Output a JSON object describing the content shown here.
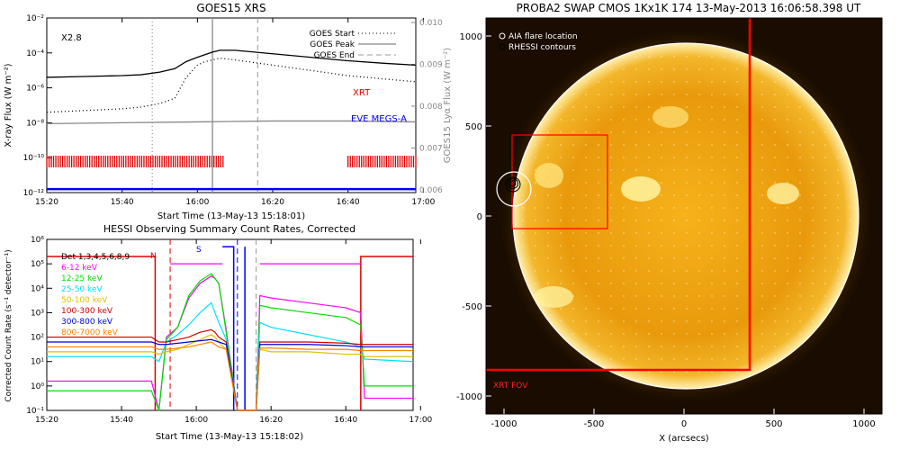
{
  "chart_data": [
    {
      "type": "line",
      "title": "GOES15 XRS",
      "xlabel": "Start Time (13-May-13 15:18:01)",
      "ylabel": "X-ray Flux (W m⁻²)",
      "ylabel_right": "GOES15 Lyα Flux (W m⁻²)",
      "class_label": "X2.8",
      "x_ticks": [
        "15:20",
        "15:40",
        "16:00",
        "16:20",
        "16:40",
        "17:00"
      ],
      "y_ticks": [
        "10⁻¹²",
        "10⁻¹⁰",
        "10⁻⁸",
        "10⁻⁶",
        "10⁻⁴",
        "10⁻²"
      ],
      "y_ticks_right": [
        "0.006",
        "0.007",
        "0.008",
        "0.009",
        "0.010"
      ],
      "xlim_min": [
        20,
        118
      ],
      "ylim_log10": [
        -12,
        -2
      ],
      "legend": [
        {
          "name": "GOES Start",
          "style": "dotted"
        },
        {
          "name": "GOES Peak",
          "style": "solid"
        },
        {
          "name": "GOES End",
          "style": "dashed"
        }
      ],
      "markers_min": {
        "start": 48,
        "peak": 64,
        "end": 76
      },
      "labels": {
        "xrt": "XRT",
        "eve": "EVE MEGS-A"
      },
      "series": [
        {
          "name": "long",
          "color": "#000000",
          "style": "solid",
          "x": [
            20,
            30,
            40,
            45,
            50,
            54,
            57,
            60,
            62,
            64,
            66,
            70,
            80,
            90,
            100,
            110,
            118
          ],
          "y": [
            -5.4,
            -5.35,
            -5.3,
            -5.25,
            -5.1,
            -4.9,
            -4.5,
            -4.25,
            -4.1,
            -3.95,
            -3.85,
            -3.85,
            -4.05,
            -4.25,
            -4.45,
            -4.6,
            -4.7
          ]
        },
        {
          "name": "short",
          "color": "#000000",
          "style": "dotted",
          "x": [
            20,
            30,
            40,
            45,
            50,
            54,
            57,
            60,
            62,
            64,
            66,
            70,
            80,
            90,
            100,
            110,
            118
          ],
          "y": [
            -7.4,
            -7.3,
            -7.2,
            -7.1,
            -6.9,
            -6.6,
            -5.4,
            -4.7,
            -4.5,
            -4.4,
            -4.3,
            -4.4,
            -4.7,
            -5.0,
            -5.3,
            -5.5,
            -5.65
          ]
        },
        {
          "name": "lya",
          "color": "#888888",
          "style": "solid",
          "x": [
            20,
            40,
            60,
            80,
            100,
            118
          ],
          "y": [
            -8.05,
            -8.0,
            -7.95,
            -7.9,
            -7.9,
            -7.95
          ]
        },
        {
          "name": "eve",
          "color": "#0000ff",
          "style": "solid",
          "x": [
            20,
            118
          ],
          "y": [
            -11.8,
            -11.8
          ]
        }
      ],
      "xrt_intervals_min": [
        [
          20,
          67
        ],
        [
          100,
          118
        ]
      ]
    },
    {
      "type": "line",
      "title": "HESSI Observing Summary Count Rates, Corrected",
      "xlabel": "Start Time (13-May-13 15:18:02)",
      "ylabel": "Corrected Count Rate (s⁻¹ detector⁻¹)",
      "x_ticks": [
        "15:20",
        "15:40",
        "16:00",
        "16:20",
        "16:40",
        "17:00"
      ],
      "y_ticks": [
        "10⁻¹",
        "10⁰",
        "10¹",
        "10²",
        "10³",
        "10⁴",
        "10⁵",
        "10⁶"
      ],
      "xlim_min": [
        20,
        118
      ],
      "ylim_log10": [
        -1,
        6
      ],
      "legend_title": "Det 1,3,4,5,6,8,9",
      "flags": {
        "n": "N",
        "s": "S"
      },
      "series": [
        {
          "name": "6-12 keV",
          "color": "#ff00ff",
          "x": [
            20,
            48,
            50,
            52,
            55,
            58,
            61,
            64,
            65,
            66,
            68,
            71,
            76,
            77,
            80,
            90,
            100,
            104,
            105,
            118
          ],
          "y": [
            0.2,
            0.2,
            -1,
            2,
            2.4,
            3.6,
            4.2,
            4.5,
            4.4,
            4.2,
            2.3,
            -1,
            -1,
            3.7,
            3.6,
            3.4,
            3.2,
            3.0,
            -0.5,
            -0.5
          ]
        },
        {
          "name": "12-25 keV",
          "color": "#00dd00",
          "x": [
            20,
            48,
            50,
            52,
            55,
            58,
            61,
            64,
            65,
            66,
            68,
            71,
            76,
            77,
            80,
            90,
            100,
            104,
            105,
            118
          ],
          "y": [
            -0.2,
            -0.2,
            -1,
            1.9,
            2.4,
            3.7,
            4.3,
            4.6,
            4.4,
            4.2,
            2.2,
            -1,
            -1,
            3.3,
            3.2,
            3.0,
            2.8,
            2.5,
            0.0,
            0.0
          ]
        },
        {
          "name": "25-50 keV",
          "color": "#00e0ff",
          "x": [
            20,
            48,
            50,
            52,
            55,
            58,
            61,
            64,
            65,
            66,
            68,
            71,
            76,
            77,
            80,
            90,
            100,
            104,
            105,
            118
          ],
          "y": [
            1.2,
            1.2,
            1.0,
            1.8,
            2.1,
            2.5,
            3.0,
            3.4,
            3.0,
            2.6,
            1.9,
            -1,
            -1,
            2.6,
            2.4,
            2.1,
            1.8,
            1.6,
            1.1,
            1.0
          ]
        },
        {
          "name": "50-100 keV",
          "color": "#dcc000",
          "x": [
            20,
            48,
            50,
            52,
            55,
            58,
            61,
            64,
            65,
            66,
            68,
            71,
            76,
            77,
            80,
            90,
            100,
            104,
            105,
            118
          ],
          "y": [
            1.4,
            1.4,
            1.3,
            1.4,
            1.5,
            1.7,
            1.9,
            2.1,
            2.0,
            1.8,
            1.5,
            -1,
            -1,
            1.5,
            1.4,
            1.4,
            1.3,
            1.3,
            1.2,
            1.2
          ]
        },
        {
          "name": "100-300 keV",
          "color": "#cc0000",
          "x": [
            20,
            48,
            50,
            52,
            55,
            58,
            61,
            64,
            65,
            66,
            68,
            71,
            76,
            77,
            80,
            90,
            100,
            104,
            105,
            118
          ],
          "y": [
            2.0,
            2.0,
            1.8,
            1.8,
            1.9,
            2.0,
            2.2,
            2.3,
            2.2,
            2.0,
            1.8,
            -1,
            -1,
            1.8,
            1.8,
            1.8,
            1.75,
            1.7,
            1.7,
            1.7
          ]
        },
        {
          "name": "300-800 keV",
          "color": "#0000dd",
          "x": [
            20,
            48,
            50,
            52,
            55,
            58,
            61,
            64,
            65,
            66,
            68,
            71,
            76,
            77,
            80,
            90,
            100,
            104,
            105,
            118
          ],
          "y": [
            1.8,
            1.8,
            1.7,
            1.7,
            1.75,
            1.8,
            1.85,
            1.9,
            1.85,
            1.8,
            1.7,
            -1,
            -1,
            1.7,
            1.7,
            1.7,
            1.65,
            1.6,
            1.6,
            1.6
          ]
        },
        {
          "name": "800-7000 keV",
          "color": "#ff8000",
          "x": [
            20,
            48,
            50,
            52,
            55,
            58,
            61,
            64,
            65,
            66,
            68,
            71,
            76,
            77,
            80,
            90,
            100,
            104,
            105,
            118
          ],
          "y": [
            1.6,
            1.6,
            1.5,
            1.5,
            1.55,
            1.6,
            1.7,
            1.8,
            1.7,
            1.6,
            1.5,
            -1,
            -1,
            1.55,
            1.55,
            1.5,
            1.5,
            1.45,
            1.45,
            1.45
          ]
        }
      ]
    },
    {
      "type": "image",
      "title": "PROBA2 SWAP CMOS 1Kx1K 174 13-May-2013 16:06:58.398 UT",
      "xlabel": "X (arcsecs)",
      "x_ticks": [
        "-1000",
        "-500",
        "0",
        "500",
        "1000"
      ],
      "y_ticks": [
        "1000",
        "500",
        "0",
        "-500",
        "-1000"
      ],
      "xlim": [
        -1100,
        1100
      ],
      "ylim": [
        -1100,
        1100
      ],
      "legend": [
        {
          "name": "AIA flare location",
          "marker": "open-circle",
          "color": "#ffffff"
        },
        {
          "name": "RHESSI contours",
          "marker": "open-circle",
          "color": "#000000"
        }
      ],
      "fov_label": "XRT FOV",
      "flare_location_arcsec": [
        -940,
        185
      ]
    }
  ]
}
